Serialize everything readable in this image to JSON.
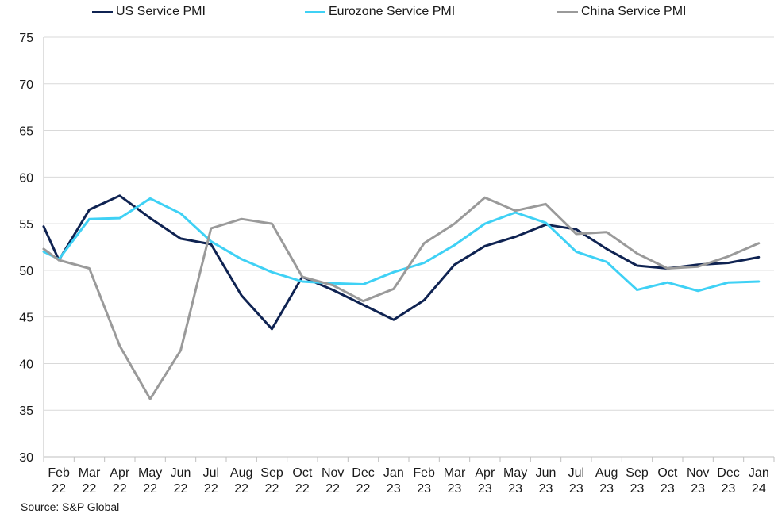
{
  "chart_data": {
    "type": "line",
    "categories": [
      [
        "Feb",
        "22"
      ],
      [
        "Mar",
        "22"
      ],
      [
        "Apr",
        "22"
      ],
      [
        "May",
        "22"
      ],
      [
        "Jun",
        "22"
      ],
      [
        "Jul",
        "22"
      ],
      [
        "Aug",
        "22"
      ],
      [
        "Sep",
        "22"
      ],
      [
        "Oct",
        "22"
      ],
      [
        "Nov",
        "22"
      ],
      [
        "Dec",
        "22"
      ],
      [
        "Jan",
        "23"
      ],
      [
        "Feb",
        "23"
      ],
      [
        "Mar",
        "23"
      ],
      [
        "Apr",
        "23"
      ],
      [
        "May",
        "23"
      ],
      [
        "Jun",
        "23"
      ],
      [
        "Jul",
        "23"
      ],
      [
        "Aug",
        "23"
      ],
      [
        "Sep",
        "23"
      ],
      [
        "Oct",
        "23"
      ],
      [
        "Nov",
        "23"
      ],
      [
        "Dec",
        "23"
      ],
      [
        "Jan",
        "24"
      ]
    ],
    "ylim": [
      30,
      75
    ],
    "yticks": [
      30,
      35,
      40,
      45,
      50,
      55,
      60,
      65,
      70,
      75
    ],
    "grid": true,
    "legend_position": "top",
    "series": [
      {
        "name": "US Service PMI",
        "color": "#0f2352",
        "start": 54.7,
        "values": [
          51.1,
          56.5,
          58.0,
          55.6,
          53.4,
          52.8,
          47.3,
          43.7,
          49.3,
          47.9,
          46.3,
          44.7,
          46.8,
          50.6,
          52.6,
          53.6,
          54.9,
          54.4,
          52.3,
          50.5,
          50.2,
          50.6,
          50.8,
          51.4
        ]
      },
      {
        "name": "Eurozone Service PMI",
        "color": "#3fd1f5",
        "start": 52.0,
        "values": [
          51.2,
          55.5,
          55.6,
          57.7,
          56.1,
          53.1,
          51.2,
          49.8,
          48.8,
          48.6,
          48.5,
          49.8,
          50.8,
          52.7,
          55.0,
          56.2,
          55.1,
          52.0,
          50.9,
          47.9,
          48.7,
          47.8,
          48.7,
          48.8
        ]
      },
      {
        "name": "China Service PMI",
        "color": "#9a9a9a",
        "start": 52.3,
        "values": [
          51.1,
          50.2,
          41.9,
          36.2,
          41.4,
          54.5,
          55.5,
          55.0,
          49.3,
          48.4,
          46.7,
          48.0,
          52.9,
          55.0,
          57.8,
          56.4,
          57.1,
          53.9,
          54.1,
          51.8,
          50.2,
          50.4,
          51.5,
          52.9
        ]
      }
    ]
  },
  "source": "Source: S&P Global"
}
